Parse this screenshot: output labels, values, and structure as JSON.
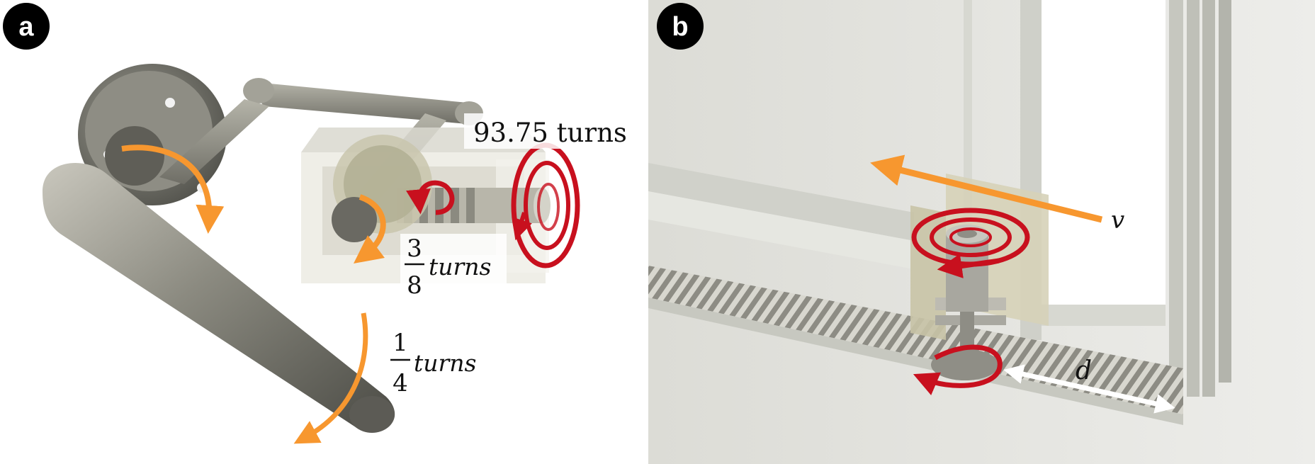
{
  "panels": [
    {
      "badge": "a",
      "labels": {
        "worm_turns": "93.75 turns",
        "gear_num": "3",
        "gear_den": "8",
        "gear_unit": "turns",
        "handle_num": "1",
        "handle_den": "4",
        "handle_unit": "turns"
      }
    },
    {
      "badge": "b",
      "labels": {
        "velocity": "v",
        "distance": "d"
      }
    }
  ],
  "colors": {
    "orange_arrow": "#f7972f",
    "red_arrow": "#c8101e",
    "badge_bg": "#000000",
    "metal": "#8a8a82",
    "frame": "#e2e3dc"
  }
}
